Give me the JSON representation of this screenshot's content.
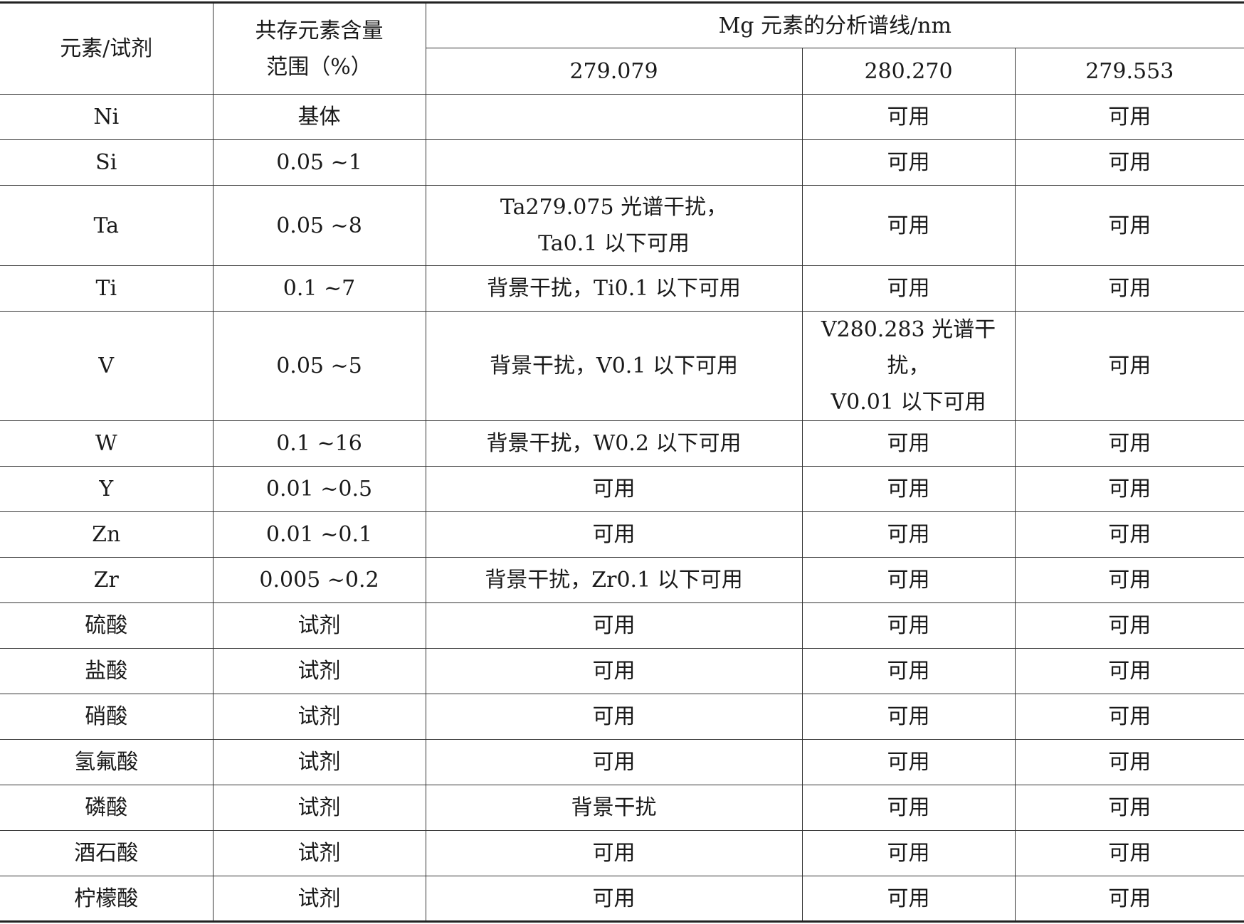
{
  "table": {
    "headers": {
      "element": "元素/试剂",
      "range_line1": "共存元素含量",
      "range_line2": "范围（%）",
      "group": "Mg 元素的分析谱线/nm",
      "lines": [
        "279.079",
        "280.270",
        "279.553"
      ]
    },
    "rows": [
      {
        "element": "Ni",
        "range": "基体",
        "c1": [],
        "c2": [
          "可用"
        ],
        "c3": "可用"
      },
      {
        "element": "Si",
        "range": "0.05 ~1",
        "c1": [],
        "c2": [
          "可用"
        ],
        "c3": "可用"
      },
      {
        "element": "Ta",
        "range": "0.05 ~8",
        "c1": [
          "Ta279.075 光谱干扰，",
          "Ta0.1 以下可用"
        ],
        "c2": [
          "可用"
        ],
        "c3": "可用"
      },
      {
        "element": "Ti",
        "range": "0.1 ~7",
        "c1": [
          "背景干扰，Ti0.1 以下可用"
        ],
        "c2": [
          "可用"
        ],
        "c3": "可用"
      },
      {
        "element": "V",
        "range": "0.05 ~5",
        "c1": [
          "背景干扰，V0.1 以下可用"
        ],
        "c2": [
          "V280.283 光谱干扰，",
          "V0.01 以下可用"
        ],
        "c3": "可用"
      },
      {
        "element": "W",
        "range": "0.1 ~16",
        "c1": [
          "背景干扰，W0.2 以下可用"
        ],
        "c2": [
          "可用"
        ],
        "c3": "可用"
      },
      {
        "element": "Y",
        "range": "0.01 ~0.5",
        "c1": [
          "可用"
        ],
        "c2": [
          "可用"
        ],
        "c3": "可用"
      },
      {
        "element": "Zn",
        "range": "0.01 ~0.1",
        "c1": [
          "可用"
        ],
        "c2": [
          "可用"
        ],
        "c3": "可用"
      },
      {
        "element": "Zr",
        "range": "0.005 ~0.2",
        "c1": [
          "背景干扰，Zr0.1 以下可用"
        ],
        "c2": [
          "可用"
        ],
        "c3": "可用"
      },
      {
        "element": "硫酸",
        "range": "试剂",
        "c1": [
          "可用"
        ],
        "c2": [
          "可用"
        ],
        "c3": "可用"
      },
      {
        "element": "盐酸",
        "range": "试剂",
        "c1": [
          "可用"
        ],
        "c2": [
          "可用"
        ],
        "c3": "可用"
      },
      {
        "element": "硝酸",
        "range": "试剂",
        "c1": [
          "可用"
        ],
        "c2": [
          "可用"
        ],
        "c3": "可用"
      },
      {
        "element": "氢氟酸",
        "range": "试剂",
        "c1": [
          "可用"
        ],
        "c2": [
          "可用"
        ],
        "c3": "可用"
      },
      {
        "element": "磷酸",
        "range": "试剂",
        "c1": [
          "背景干扰"
        ],
        "c2": [
          "可用"
        ],
        "c3": "可用"
      },
      {
        "element": "酒石酸",
        "range": "试剂",
        "c1": [
          "可用"
        ],
        "c2": [
          "可用"
        ],
        "c3": "可用"
      },
      {
        "element": "柠檬酸",
        "range": "试剂",
        "c1": [
          "可用"
        ],
        "c2": [
          "可用"
        ],
        "c3": "可用"
      }
    ]
  }
}
